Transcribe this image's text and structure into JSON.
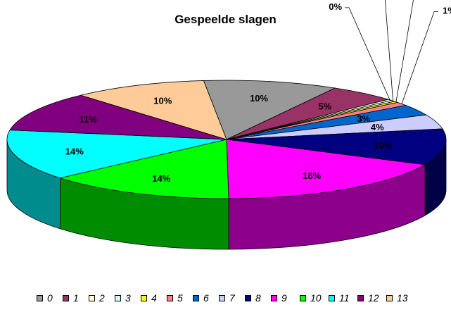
{
  "chart_data": {
    "type": "pie",
    "title": "Gespeelde slagen",
    "categories": [
      "0",
      "1",
      "2",
      "3",
      "4",
      "5",
      "6",
      "7",
      "8",
      "9",
      "10",
      "11",
      "12",
      "13"
    ],
    "values": [
      10,
      5,
      0,
      0,
      0,
      1,
      3,
      4,
      10,
      18,
      14,
      14,
      11,
      10
    ],
    "data_labels": [
      "10%",
      "5%",
      "0%",
      "0%",
      "0%",
      "1%",
      "3%",
      "4%",
      "10%",
      "18%",
      "14%",
      "14%",
      "11%",
      "10%"
    ],
    "colors": [
      "#999999",
      "#993366",
      "#ffffcc",
      "#ccffff",
      "#ffff00",
      "#ff8080",
      "#0066cc",
      "#ccccff",
      "#000080",
      "#ff00ff",
      "#00ff00",
      "#00ffff",
      "#800080",
      "#ffcc99"
    ],
    "legend_position": "bottom",
    "style": "3d"
  }
}
